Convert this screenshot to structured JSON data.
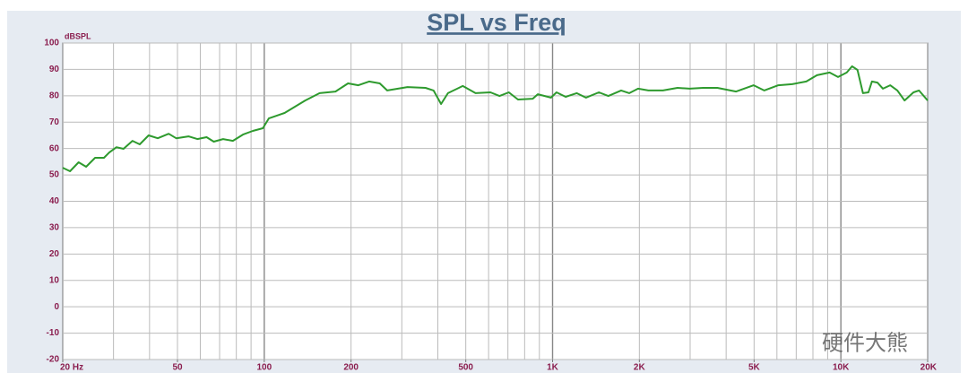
{
  "chart_data": {
    "type": "line",
    "title": "SPL vs Freq",
    "y_label": "dBSPL",
    "watermark": "硬件大熊",
    "log_x": true,
    "grid": true,
    "minor_grid": true,
    "color": "#2e9a2e",
    "xlim": [
      20,
      20000
    ],
    "ylim": [
      -20,
      100
    ],
    "xticks": [
      {
        "value": 20,
        "label": "20 Hz"
      },
      50,
      100,
      200,
      500,
      {
        "value": 1000,
        "label": "1K"
      },
      {
        "value": 2000,
        "label": "2K"
      },
      {
        "value": 5000,
        "label": "5K"
      },
      {
        "value": 10000,
        "label": "10K"
      },
      {
        "value": 20000,
        "label": "20K"
      }
    ],
    "yticks": [
      -20,
      -10,
      0,
      10,
      20,
      30,
      40,
      50,
      60,
      70,
      80,
      90,
      100
    ],
    "x": [
      20,
      21.2,
      22.7,
      24.1,
      25.9,
      27.8,
      29,
      30.7,
      32.5,
      34.9,
      37,
      39.7,
      42.7,
      46.6,
      49.5,
      54.6,
      58.6,
      63.1,
      66.8,
      72,
      77.8,
      84.4,
      91.3,
      98.9,
      103.7,
      117.6,
      138.7,
      155.6,
      176.6,
      195.2,
      212,
      231,
      251.6,
      267,
      313.9,
      362.5,
      386.5,
      410.5,
      433.8,
      488.2,
      540.5,
      608.7,
      654.7,
      705,
      758.5,
      853.4,
      888.5,
      987.4,
      1032,
      1110,
      1212,
      1305,
      1448,
      1561,
      1729,
      1845,
      1979,
      2150,
      2414,
      2713,
      2990,
      3324,
      3729,
      4332,
      4985,
      5420,
      6069,
      6778,
      7585,
      8265,
      9137,
      9778,
      10480,
      10940,
      11420,
      11930,
      12460,
      12810,
      13390,
      13990,
      14830,
      15700,
      16630,
      17860,
      18660,
      20000
    ],
    "values": [
      52.7,
      51.4,
      54.8,
      53.1,
      56.5,
      56.5,
      58.5,
      60.5,
      59.9,
      62.9,
      61.6,
      65,
      63.9,
      65.6,
      63.9,
      64.6,
      63.6,
      64.3,
      62.6,
      63.6,
      62.9,
      65.3,
      66.7,
      67.7,
      71.4,
      73.5,
      78.2,
      81,
      81.6,
      84.7,
      84,
      85.4,
      84.7,
      82,
      83.3,
      83,
      82,
      76.9,
      81,
      83.7,
      81,
      81.3,
      79.9,
      81.3,
      78.6,
      78.9,
      80.6,
      79.3,
      81.3,
      79.6,
      81,
      79.3,
      81.3,
      79.9,
      82,
      81,
      82.7,
      82,
      82,
      83,
      82.7,
      83,
      83,
      81.6,
      84,
      82,
      84,
      84.4,
      85.4,
      87.8,
      88.8,
      87.1,
      88.8,
      91.2,
      89.8,
      81,
      81.3,
      85.4,
      85,
      82.7,
      84,
      82,
      78.2,
      81.3,
      82,
      78.2
    ]
  }
}
